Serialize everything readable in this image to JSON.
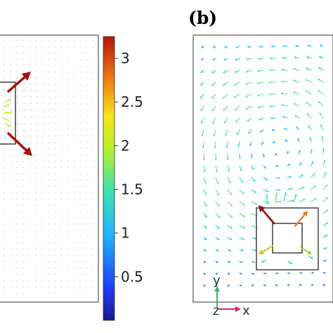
{
  "panel_label": "(b)",
  "colorbar": {
    "ticks": [
      "3",
      "2.5",
      "2",
      "1.5",
      "1",
      "0.5"
    ],
    "tick_values": [
      3,
      2.5,
      2,
      1.5,
      1,
      0.5
    ],
    "range": [
      0,
      3.25
    ],
    "colormap": "jet"
  },
  "axes_triad": {
    "y_label": "y",
    "z_label": "z",
    "x_label": "x"
  },
  "colors": {
    "frame": "#555555",
    "box": "#333333",
    "triad_y": "#3cb371",
    "triad_x": "#e0245e"
  }
}
